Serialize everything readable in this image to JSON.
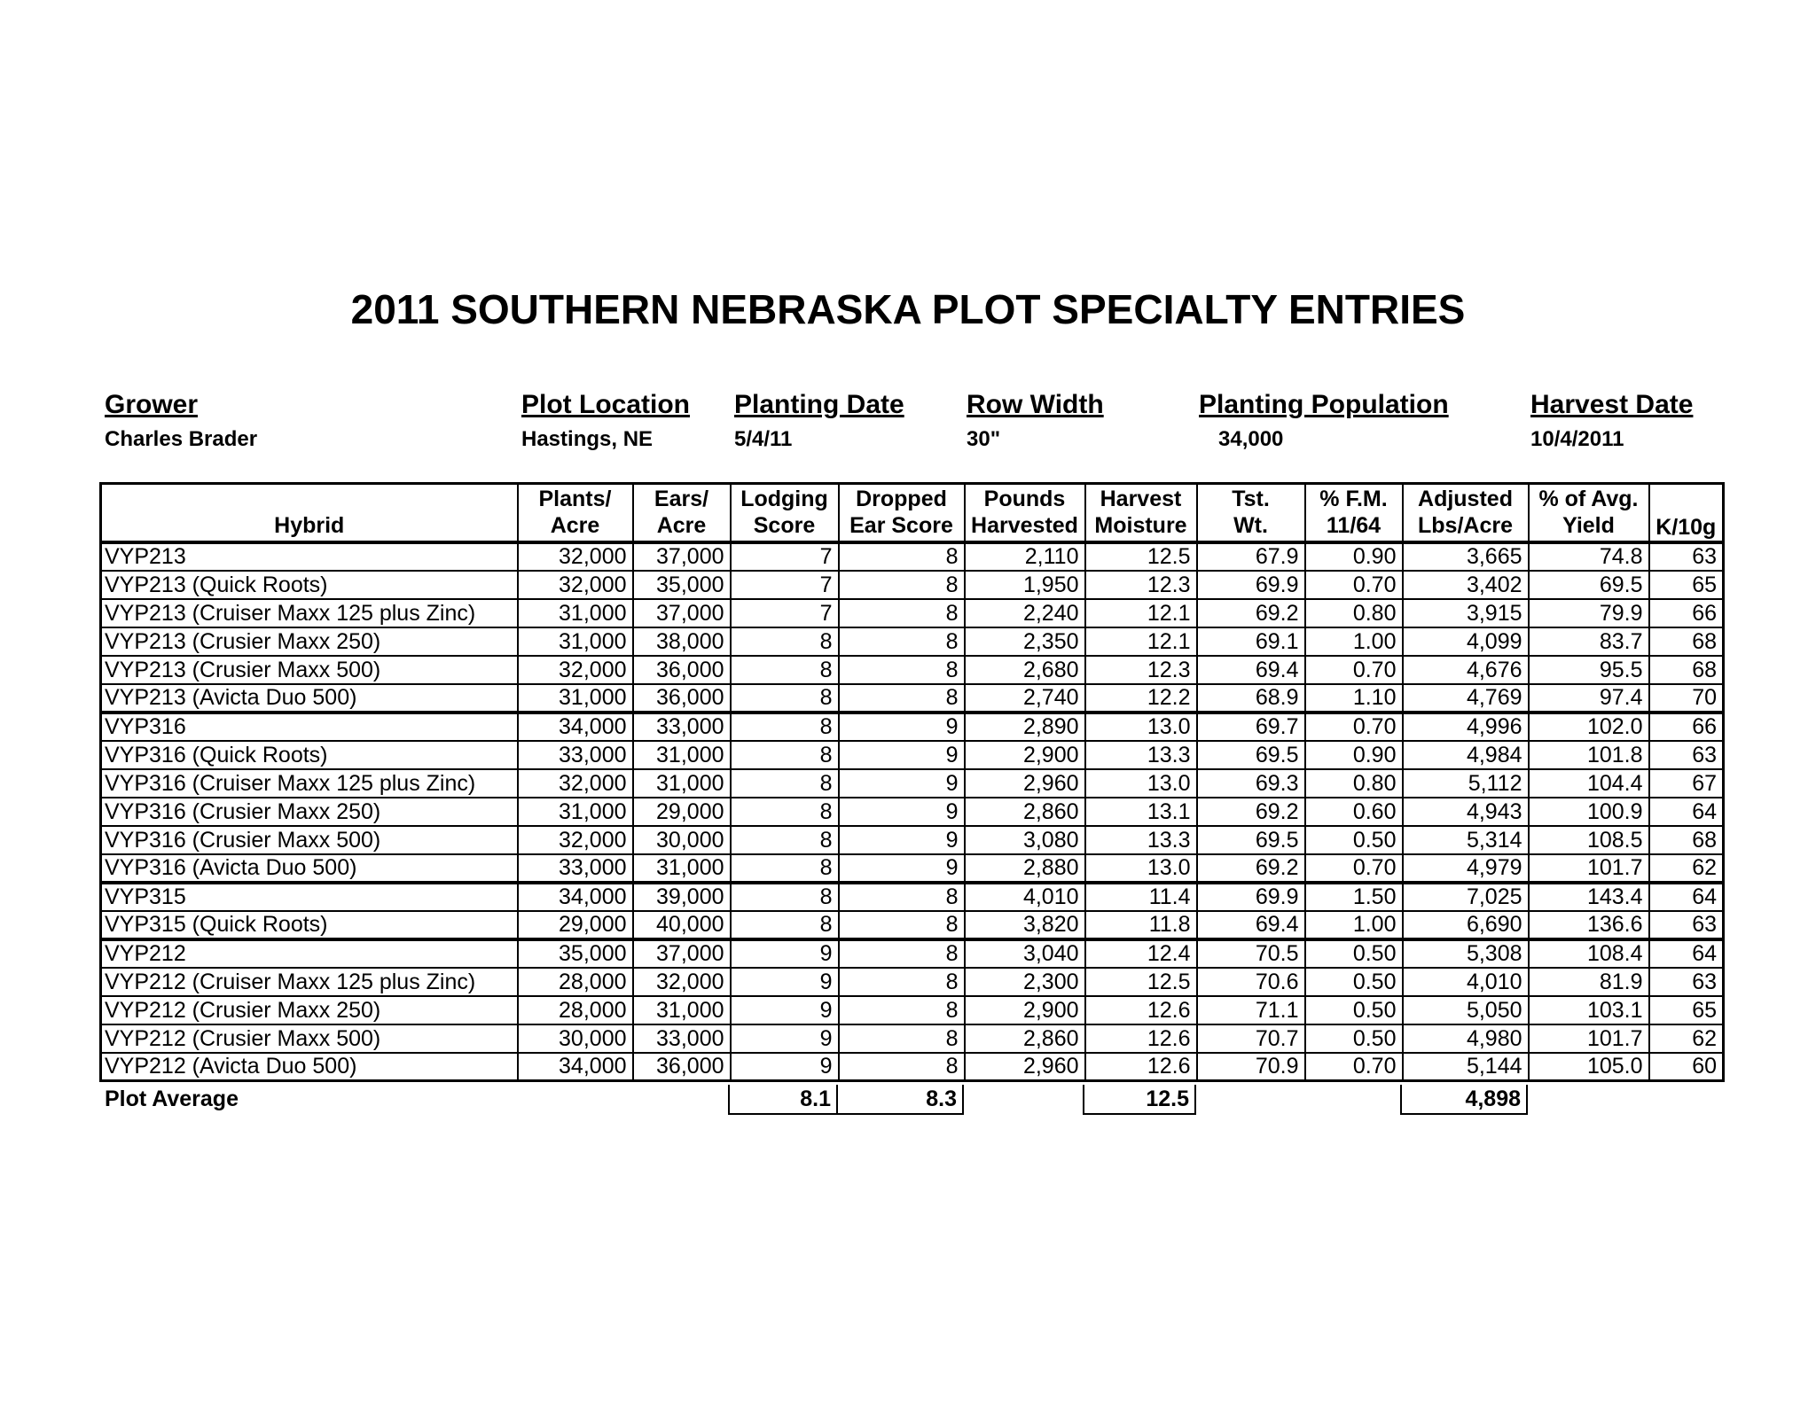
{
  "title": "2011 SOUTHERN NEBRASKA PLOT SPECIALTY ENTRIES",
  "info": {
    "grower": {
      "label": "Grower",
      "value": "Charles Brader"
    },
    "plot_location": {
      "label": "Plot Location",
      "value": "Hastings, NE"
    },
    "planting_date": {
      "label": "Planting Date",
      "value": "5/4/11"
    },
    "row_width": {
      "label": "Row Width",
      "value": "30\""
    },
    "planting_population": {
      "label": "Planting Population",
      "value": "34,000"
    },
    "harvest_date": {
      "label": "Harvest Date",
      "value": "10/4/2011"
    }
  },
  "table": {
    "headers": [
      [
        "",
        "Hybrid"
      ],
      [
        "Plants/",
        "Acre"
      ],
      [
        "Ears/",
        "Acre"
      ],
      [
        "Lodging",
        "Score"
      ],
      [
        "Dropped",
        "Ear Score"
      ],
      [
        "Pounds",
        "Harvested"
      ],
      [
        "Harvest",
        "Moisture"
      ],
      [
        "Tst.",
        "Wt."
      ],
      [
        "% F.M.",
        "11/64"
      ],
      [
        "Adjusted",
        "Lbs/Acre"
      ],
      [
        "% of Avg.",
        "Yield"
      ],
      [
        "",
        "K/10g"
      ]
    ],
    "rows": [
      [
        "VYP213",
        "32,000",
        "37,000",
        "7",
        "8",
        "2,110",
        "12.5",
        "67.9",
        "0.90",
        "3,665",
        "74.8",
        "63"
      ],
      [
        "VYP213 (Quick Roots)",
        "32,000",
        "35,000",
        "7",
        "8",
        "1,950",
        "12.3",
        "69.9",
        "0.70",
        "3,402",
        "69.5",
        "65"
      ],
      [
        "VYP213 (Cruiser Maxx 125 plus Zinc)",
        "31,000",
        "37,000",
        "7",
        "8",
        "2,240",
        "12.1",
        "69.2",
        "0.80",
        "3,915",
        "79.9",
        "66"
      ],
      [
        "VYP213 (Crusier Maxx 250)",
        "31,000",
        "38,000",
        "8",
        "8",
        "2,350",
        "12.1",
        "69.1",
        "1.00",
        "4,099",
        "83.7",
        "68"
      ],
      [
        "VYP213 (Crusier Maxx 500)",
        "32,000",
        "36,000",
        "8",
        "8",
        "2,680",
        "12.3",
        "69.4",
        "0.70",
        "4,676",
        "95.5",
        "68"
      ],
      [
        "VYP213 (Avicta Duo 500)",
        "31,000",
        "36,000",
        "8",
        "8",
        "2,740",
        "12.2",
        "68.9",
        "1.10",
        "4,769",
        "97.4",
        "70"
      ],
      [
        "VYP316",
        "34,000",
        "33,000",
        "8",
        "9",
        "2,890",
        "13.0",
        "69.7",
        "0.70",
        "4,996",
        "102.0",
        "66"
      ],
      [
        "VYP316 (Quick Roots)",
        "33,000",
        "31,000",
        "8",
        "9",
        "2,900",
        "13.3",
        "69.5",
        "0.90",
        "4,984",
        "101.8",
        "63"
      ],
      [
        "VYP316 (Cruiser Maxx 125 plus Zinc)",
        "32,000",
        "31,000",
        "8",
        "9",
        "2,960",
        "13.0",
        "69.3",
        "0.80",
        "5,112",
        "104.4",
        "67"
      ],
      [
        "VYP316 (Crusier Maxx 250)",
        "31,000",
        "29,000",
        "8",
        "9",
        "2,860",
        "13.1",
        "69.2",
        "0.60",
        "4,943",
        "100.9",
        "64"
      ],
      [
        "VYP316 (Crusier Maxx 500)",
        "32,000",
        "30,000",
        "8",
        "9",
        "3,080",
        "13.3",
        "69.5",
        "0.50",
        "5,314",
        "108.5",
        "68"
      ],
      [
        "VYP316 (Avicta Duo 500)",
        "33,000",
        "31,000",
        "8",
        "9",
        "2,880",
        "13.0",
        "69.2",
        "0.70",
        "4,979",
        "101.7",
        "62"
      ],
      [
        "VYP315",
        "34,000",
        "39,000",
        "8",
        "8",
        "4,010",
        "11.4",
        "69.9",
        "1.50",
        "7,025",
        "143.4",
        "64"
      ],
      [
        "VYP315 (Quick Roots)",
        "29,000",
        "40,000",
        "8",
        "8",
        "3,820",
        "11.8",
        "69.4",
        "1.00",
        "6,690",
        "136.6",
        "63"
      ],
      [
        "VYP212",
        "35,000",
        "37,000",
        "9",
        "8",
        "3,040",
        "12.4",
        "70.5",
        "0.50",
        "5,308",
        "108.4",
        "64"
      ],
      [
        "VYP212 (Cruiser Maxx 125 plus Zinc)",
        "28,000",
        "32,000",
        "9",
        "8",
        "2,300",
        "12.5",
        "70.6",
        "0.50",
        "4,010",
        "81.9",
        "63"
      ],
      [
        "VYP212 (Crusier Maxx 250)",
        "28,000",
        "31,000",
        "9",
        "8",
        "2,900",
        "12.6",
        "71.1",
        "0.50",
        "5,050",
        "103.1",
        "65"
      ],
      [
        "VYP212 (Crusier Maxx 500)",
        "30,000",
        "33,000",
        "9",
        "8",
        "2,860",
        "12.6",
        "70.7",
        "0.50",
        "4,980",
        "101.7",
        "62"
      ],
      [
        "VYP212 (Avicta Duo 500)",
        "34,000",
        "36,000",
        "9",
        "8",
        "2,960",
        "12.6",
        "70.9",
        "0.70",
        "5,144",
        "105.0",
        "60"
      ]
    ]
  },
  "average": {
    "label": "Plot Average",
    "lodging": "8.1",
    "dropped": "8.3",
    "moisture": "12.5",
    "adjusted": "4,898"
  }
}
